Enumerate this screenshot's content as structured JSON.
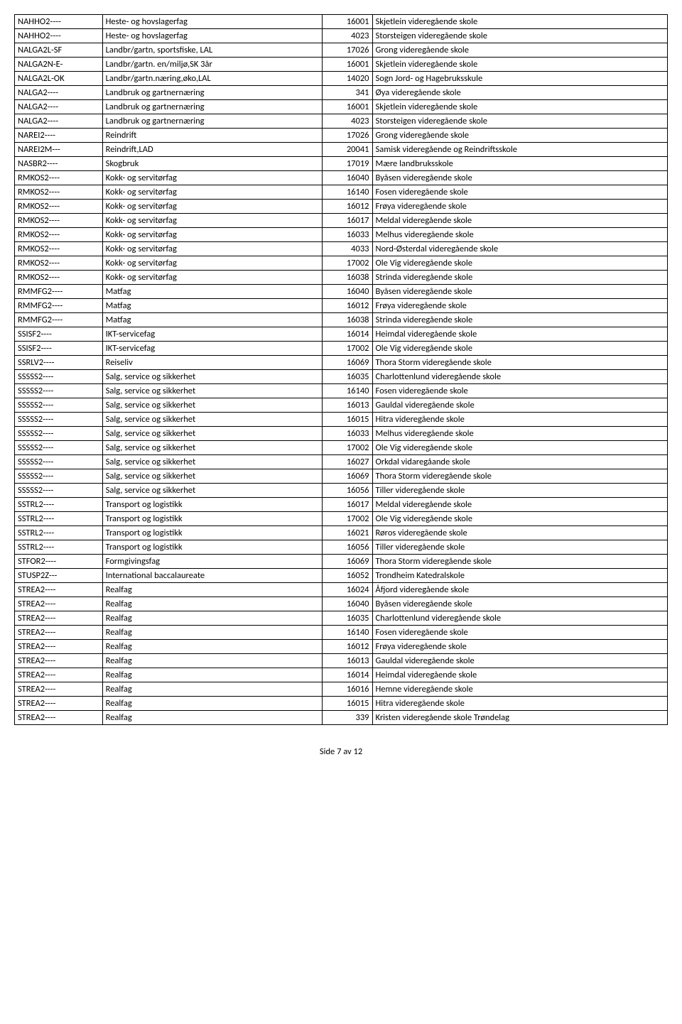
{
  "footer": "Side 7 av 12",
  "rows": [
    {
      "code": "NAHHO2----",
      "desc": "Heste- og hovslagerfag",
      "num": "16001",
      "school": "Skjetlein videregående skole"
    },
    {
      "code": "NAHHO2----",
      "desc": "Heste- og hovslagerfag",
      "num": "4023",
      "school": "Storsteigen videregående skole"
    },
    {
      "code": "NALGA2L-SF",
      "desc": "Landbr/gartn, sportsfiske, LAL",
      "num": "17026",
      "school": "Grong videregående skole"
    },
    {
      "code": "NALGA2N-E-",
      "desc": "Landbr/gartn. en/miljø,SK 3år",
      "num": "16001",
      "school": "Skjetlein videregående skole"
    },
    {
      "code": "NALGA2L-OK",
      "desc": "Landbr/gartn.næring,øko,LAL",
      "num": "14020",
      "school": "Sogn Jord- og Hagebruksskule"
    },
    {
      "code": "NALGA2----",
      "desc": "Landbruk og gartnernæring",
      "num": "341",
      "school": "Øya videregående skole"
    },
    {
      "code": "NALGA2----",
      "desc": "Landbruk og gartnernæring",
      "num": "16001",
      "school": "Skjetlein videregående skole"
    },
    {
      "code": "NALGA2----",
      "desc": "Landbruk og gartnernæring",
      "num": "4023",
      "school": "Storsteigen videregående skole"
    },
    {
      "code": "NAREI2----",
      "desc": "Reindrift",
      "num": "17026",
      "school": "Grong videregående skole"
    },
    {
      "code": "NAREI2M---",
      "desc": "Reindrift,LAD",
      "num": "20041",
      "school": "Samisk videregående og Reindriftsskole"
    },
    {
      "code": "NASBR2----",
      "desc": "Skogbruk",
      "num": "17019",
      "school": "Mære landbruksskole"
    },
    {
      "code": "RMKOS2----",
      "desc": "Kokk- og servitørfag",
      "num": "16040",
      "school": "Byåsen videregående skole"
    },
    {
      "code": "RMKOS2----",
      "desc": "Kokk- og servitørfag",
      "num": "16140",
      "school": "Fosen videregående skole"
    },
    {
      "code": "RMKOS2----",
      "desc": "Kokk- og servitørfag",
      "num": "16012",
      "school": "Frøya videregående skole"
    },
    {
      "code": "RMKOS2----",
      "desc": "Kokk- og servitørfag",
      "num": "16017",
      "school": "Meldal videregående skole"
    },
    {
      "code": "RMKOS2----",
      "desc": "Kokk- og servitørfag",
      "num": "16033",
      "school": "Melhus videregående skole"
    },
    {
      "code": "RMKOS2----",
      "desc": "Kokk- og servitørfag",
      "num": "4033",
      "school": "Nord-Østerdal videregående skole"
    },
    {
      "code": "RMKOS2----",
      "desc": "Kokk- og servitørfag",
      "num": "17002",
      "school": "Ole Vig videregående skole"
    },
    {
      "code": "RMKOS2----",
      "desc": "Kokk- og servitørfag",
      "num": "16038",
      "school": "Strinda videregående skole"
    },
    {
      "code": "RMMFG2----",
      "desc": "Matfag",
      "num": "16040",
      "school": "Byåsen videregående skole"
    },
    {
      "code": "RMMFG2----",
      "desc": "Matfag",
      "num": "16012",
      "school": "Frøya videregående skole"
    },
    {
      "code": "RMMFG2----",
      "desc": "Matfag",
      "num": "16038",
      "school": "Strinda videregående skole"
    },
    {
      "code": "SSISF2----",
      "desc": "IKT-servicefag",
      "num": "16014",
      "school": "Heimdal videregående skole"
    },
    {
      "code": "SSISF2----",
      "desc": "IKT-servicefag",
      "num": "17002",
      "school": "Ole Vig videregående skole"
    },
    {
      "code": "SSRLV2----",
      "desc": "Reiseliv",
      "num": "16069",
      "school": "Thora Storm videregående skole"
    },
    {
      "code": "SSSSS2----",
      "desc": "Salg, service og sikkerhet",
      "num": "16035",
      "school": "Charlottenlund videregående skole"
    },
    {
      "code": "SSSSS2----",
      "desc": "Salg, service og sikkerhet",
      "num": "16140",
      "school": "Fosen videregående skole"
    },
    {
      "code": "SSSSS2----",
      "desc": "Salg, service og sikkerhet",
      "num": "16013",
      "school": "Gauldal videregående skole"
    },
    {
      "code": "SSSSS2----",
      "desc": "Salg, service og sikkerhet",
      "num": "16015",
      "school": "Hitra videregående skole"
    },
    {
      "code": "SSSSS2----",
      "desc": "Salg, service og sikkerhet",
      "num": "16033",
      "school": "Melhus videregående skole"
    },
    {
      "code": "SSSSS2----",
      "desc": "Salg, service og sikkerhet",
      "num": "17002",
      "school": "Ole Vig videregående skole"
    },
    {
      "code": "SSSSS2----",
      "desc": "Salg, service og sikkerhet",
      "num": "16027",
      "school": "Orkdal vidaregåande skole"
    },
    {
      "code": "SSSSS2----",
      "desc": "Salg, service og sikkerhet",
      "num": "16069",
      "school": "Thora Storm videregående skole"
    },
    {
      "code": "SSSSS2----",
      "desc": "Salg, service og sikkerhet",
      "num": "16056",
      "school": "Tiller videregående skole"
    },
    {
      "code": "SSTRL2----",
      "desc": "Transport og logistikk",
      "num": "16017",
      "school": "Meldal videregående skole"
    },
    {
      "code": "SSTRL2----",
      "desc": "Transport og logistikk",
      "num": "17002",
      "school": "Ole Vig videregående skole"
    },
    {
      "code": "SSTRL2----",
      "desc": "Transport og logistikk",
      "num": "16021",
      "school": "Røros videregående skole"
    },
    {
      "code": "SSTRL2----",
      "desc": "Transport og logistikk",
      "num": "16056",
      "school": "Tiller videregående skole"
    },
    {
      "code": "STFOR2----",
      "desc": "Formgivingsfag",
      "num": "16069",
      "school": "Thora Storm videregående skole"
    },
    {
      "code": "STUSP2Z---",
      "desc": "International baccalaureate",
      "num": "16052",
      "school": "Trondheim Katedralskole"
    },
    {
      "code": "STREA2----",
      "desc": "Realfag",
      "num": "16024",
      "school": "Åfjord videregående skole"
    },
    {
      "code": "STREA2----",
      "desc": "Realfag",
      "num": "16040",
      "school": "Byåsen videregående skole"
    },
    {
      "code": "STREA2----",
      "desc": "Realfag",
      "num": "16035",
      "school": "Charlottenlund videregående skole"
    },
    {
      "code": "STREA2----",
      "desc": "Realfag",
      "num": "16140",
      "school": "Fosen videregående skole"
    },
    {
      "code": "STREA2----",
      "desc": "Realfag",
      "num": "16012",
      "school": "Frøya videregående skole"
    },
    {
      "code": "STREA2----",
      "desc": "Realfag",
      "num": "16013",
      "school": "Gauldal videregående skole"
    },
    {
      "code": "STREA2----",
      "desc": "Realfag",
      "num": "16014",
      "school": "Heimdal videregående skole"
    },
    {
      "code": "STREA2----",
      "desc": "Realfag",
      "num": "16016",
      "school": "Hemne videregående skole"
    },
    {
      "code": "STREA2----",
      "desc": "Realfag",
      "num": "16015",
      "school": "Hitra videregående skole"
    },
    {
      "code": "STREA2----",
      "desc": "Realfag",
      "num": "339",
      "school": "Kristen videregående skole Trøndelag"
    }
  ]
}
